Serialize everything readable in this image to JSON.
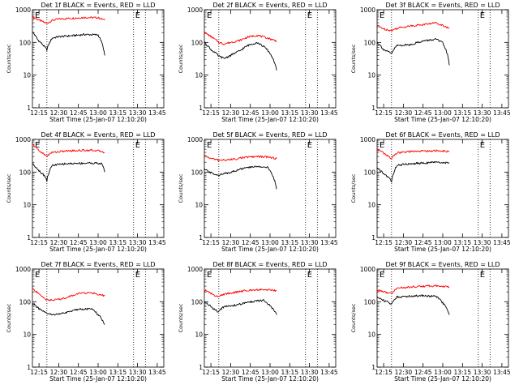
{
  "figure": {
    "ylabel": "Counts/sec",
    "xlabel": "Start Time (25-Jan-07 12:10:20)",
    "x_tick_labels": [
      "12:15",
      "12:30",
      "12:45",
      "13:00",
      "13:15",
      "13:30",
      "13:45"
    ],
    "y_tick_labels": [
      "1000",
      "100",
      "10",
      "1"
    ],
    "flag_label": "E",
    "colors": {
      "events": "#000000",
      "lld": "#ff0000",
      "frame": "#000000"
    }
  },
  "chart_data": [
    {
      "type": "line",
      "title": "Det 1f BLACK = Events, RED = LLD",
      "xlabel": "Start Time (25-Jan-07 12:10:20)",
      "ylabel": "Counts/sec",
      "ylim": [
        1,
        1000
      ],
      "y_scale": "log",
      "x_ticks": [
        "12:15",
        "12:30",
        "12:45",
        "13:00",
        "13:15",
        "13:30",
        "13:45"
      ],
      "x_range": [
        "12:10",
        "13:50"
      ],
      "vlines_dotted": [
        "12:21",
        "13:27",
        "13:36"
      ],
      "series": [
        {
          "key": "lld",
          "color": "#ff0000",
          "x": [
            "12:10",
            "12:14",
            "12:19",
            "12:21",
            "12:25",
            "12:30",
            "12:40",
            "12:50",
            "13:00",
            "13:05"
          ],
          "y": [
            600,
            500,
            410,
            380,
            470,
            520,
            550,
            580,
            570,
            480
          ]
        },
        {
          "key": "events",
          "color": "#000000",
          "x": [
            "12:10",
            "12:14",
            "12:19",
            "12:21",
            "12:25",
            "12:30",
            "12:40",
            "12:50",
            "13:00",
            "13:05"
          ],
          "y": [
            210,
            120,
            75,
            60,
            135,
            150,
            160,
            175,
            170,
            40
          ]
        }
      ]
    },
    {
      "type": "line",
      "title": "Det 2f BLACK = Events, RED = LLD",
      "xlabel": "Start Time (25-Jan-07 12:10:20)",
      "ylabel": "Counts/sec",
      "ylim": [
        1,
        1000
      ],
      "y_scale": "log",
      "x_ticks": [
        "12:15",
        "12:30",
        "12:45",
        "13:00",
        "13:15",
        "13:30",
        "13:45"
      ],
      "x_range": [
        "12:10",
        "13:50"
      ],
      "vlines_dotted": [
        "12:21",
        "13:27",
        "13:36"
      ],
      "series": [
        {
          "key": "lld",
          "color": "#ff0000",
          "x": [
            "12:10",
            "12:15",
            "12:21",
            "12:25",
            "12:30",
            "12:37",
            "12:43",
            "12:50",
            "12:57",
            "13:05"
          ],
          "y": [
            200,
            150,
            100,
            90,
            100,
            115,
            145,
            165,
            140,
            110
          ]
        },
        {
          "key": "events",
          "color": "#000000",
          "x": [
            "12:10",
            "12:15",
            "12:21",
            "12:25",
            "12:30",
            "12:37",
            "12:43",
            "12:50",
            "12:57",
            "13:05"
          ],
          "y": [
            100,
            60,
            38,
            32,
            40,
            55,
            80,
            100,
            65,
            14
          ]
        }
      ]
    },
    {
      "type": "line",
      "title": "Det 3f BLACK = Events, RED = LLD",
      "xlabel": "Start Time (25-Jan-07 12:10:20)",
      "ylabel": "Counts/sec",
      "ylim": [
        1,
        1000
      ],
      "y_scale": "log",
      "x_ticks": [
        "12:15",
        "12:30",
        "12:45",
        "13:00",
        "13:15",
        "13:30",
        "13:45"
      ],
      "x_range": [
        "12:10",
        "13:50"
      ],
      "vlines_dotted": [
        "12:21",
        "13:27",
        "13:36"
      ],
      "series": [
        {
          "key": "lld",
          "color": "#ff0000",
          "x": [
            "12:10",
            "12:15",
            "12:21",
            "12:25",
            "12:35",
            "12:45",
            "12:55",
            "13:00",
            "13:05"
          ],
          "y": [
            330,
            260,
            230,
            270,
            320,
            350,
            400,
            330,
            270
          ]
        },
        {
          "key": "events",
          "color": "#000000",
          "x": [
            "12:10",
            "12:15",
            "12:21",
            "12:25",
            "12:35",
            "12:45",
            "12:55",
            "13:00",
            "13:05"
          ],
          "y": [
            100,
            60,
            45,
            80,
            85,
            110,
            125,
            95,
            20
          ]
        }
      ]
    },
    {
      "type": "line",
      "title": "Det 4f BLACK = Events, RED = LLD",
      "xlabel": "Start Time (25-Jan-07 12:10:20)",
      "ylabel": "Counts/sec",
      "ylim": [
        1,
        1000
      ],
      "y_scale": "log",
      "x_ticks": [
        "12:15",
        "12:30",
        "12:45",
        "13:00",
        "13:15",
        "13:30",
        "13:45"
      ],
      "x_range": [
        "12:10",
        "13:50"
      ],
      "vlines_dotted": [
        "12:21",
        "13:27",
        "13:36"
      ],
      "series": [
        {
          "key": "lld",
          "color": "#ff0000",
          "x": [
            "12:10",
            "12:15",
            "12:20",
            "12:21",
            "12:25",
            "12:35",
            "12:45",
            "12:55",
            "13:03",
            "13:05"
          ],
          "y": [
            700,
            450,
            320,
            310,
            400,
            440,
            460,
            470,
            430,
            390
          ]
        },
        {
          "key": "events",
          "color": "#000000",
          "x": [
            "12:10",
            "12:15",
            "12:20",
            "12:21",
            "12:25",
            "12:35",
            "12:45",
            "12:55",
            "13:03",
            "13:05"
          ],
          "y": [
            180,
            110,
            70,
            55,
            160,
            180,
            185,
            190,
            180,
            100
          ]
        }
      ]
    },
    {
      "type": "line",
      "title": "Det 5f BLACK = Events, RED = LLD",
      "xlabel": "Start Time (25-Jan-07 12:10:20)",
      "ylabel": "Counts/sec",
      "ylim": [
        1,
        1000
      ],
      "y_scale": "log",
      "x_ticks": [
        "12:15",
        "12:30",
        "12:45",
        "13:00",
        "13:15",
        "13:30",
        "13:45"
      ],
      "x_range": [
        "12:10",
        "13:50"
      ],
      "vlines_dotted": [
        "12:21",
        "13:27",
        "13:36"
      ],
      "series": [
        {
          "key": "lld",
          "color": "#ff0000",
          "x": [
            "12:10",
            "12:15",
            "12:21",
            "12:30",
            "12:40",
            "12:50",
            "12:58",
            "13:05"
          ],
          "y": [
            320,
            260,
            230,
            240,
            280,
            300,
            290,
            260
          ]
        },
        {
          "key": "events",
          "color": "#000000",
          "x": [
            "12:10",
            "12:15",
            "12:21",
            "12:30",
            "12:40",
            "12:50",
            "12:58",
            "13:05"
          ],
          "y": [
            120,
            95,
            80,
            100,
            130,
            150,
            140,
            30
          ]
        }
      ]
    },
    {
      "type": "line",
      "title": "Det 6f BLACK = Events, RED = LLD",
      "xlabel": "Start Time (25-Jan-07 12:10:20)",
      "ylabel": "Counts/sec",
      "ylim": [
        1,
        1000
      ],
      "y_scale": "log",
      "x_ticks": [
        "12:15",
        "12:30",
        "12:45",
        "13:00",
        "13:15",
        "13:30",
        "13:45"
      ],
      "x_range": [
        "12:10",
        "13:50"
      ],
      "vlines_dotted": [
        "12:21",
        "13:27",
        "13:36"
      ],
      "series": [
        {
          "key": "lld",
          "color": "#ff0000",
          "x": [
            "12:10",
            "12:15",
            "12:20",
            "12:21",
            "12:25",
            "12:35",
            "12:45",
            "12:55",
            "13:05"
          ],
          "y": [
            500,
            380,
            270,
            260,
            390,
            420,
            440,
            450,
            420
          ]
        },
        {
          "key": "events",
          "color": "#000000",
          "x": [
            "12:10",
            "12:15",
            "12:20",
            "12:21",
            "12:25",
            "12:35",
            "12:45",
            "12:55",
            "13:05"
          ],
          "y": [
            130,
            90,
            60,
            50,
            160,
            180,
            190,
            200,
            190
          ]
        }
      ]
    },
    {
      "type": "line",
      "title": "Det 7f BLACK = Events, RED = LLD",
      "xlabel": "Start Time (25-Jan-07 12:10:20)",
      "ylabel": "Counts/sec",
      "ylim": [
        1,
        1000
      ],
      "y_scale": "log",
      "x_ticks": [
        "12:15",
        "12:30",
        "12:45",
        "13:00",
        "13:15",
        "13:30",
        "13:45"
      ],
      "x_range": [
        "12:10",
        "13:50"
      ],
      "vlines_dotted": [
        "12:21",
        "13:27",
        "13:36"
      ],
      "series": [
        {
          "key": "lld",
          "color": "#ff0000",
          "x": [
            "12:10",
            "12:15",
            "12:20",
            "12:25",
            "12:35",
            "12:45",
            "12:55",
            "13:05"
          ],
          "y": [
            250,
            170,
            120,
            110,
            130,
            180,
            190,
            150
          ]
        },
        {
          "key": "events",
          "color": "#000000",
          "x": [
            "12:10",
            "12:15",
            "12:20",
            "12:25",
            "12:35",
            "12:45",
            "12:55",
            "13:05"
          ],
          "y": [
            90,
            60,
            45,
            40,
            45,
            60,
            60,
            20
          ]
        }
      ]
    },
    {
      "type": "line",
      "title": "Det 8f BLACK = Events, RED = LLD",
      "xlabel": "Start Time (25-Jan-07 12:10:20)",
      "ylabel": "Counts/sec",
      "ylim": [
        1,
        1000
      ],
      "y_scale": "log",
      "x_ticks": [
        "12:15",
        "12:30",
        "12:45",
        "13:00",
        "13:15",
        "13:30",
        "13:45"
      ],
      "x_range": [
        "12:10",
        "13:50"
      ],
      "vlines_dotted": [
        "12:21",
        "13:27",
        "13:36"
      ],
      "series": [
        {
          "key": "lld",
          "color": "#ff0000",
          "x": [
            "12:10",
            "12:15",
            "12:20",
            "12:25",
            "12:35",
            "12:45",
            "12:55",
            "13:05"
          ],
          "y": [
            230,
            180,
            140,
            170,
            200,
            230,
            240,
            220
          ]
        },
        {
          "key": "events",
          "color": "#000000",
          "x": [
            "12:10",
            "12:15",
            "12:20",
            "12:25",
            "12:35",
            "12:45",
            "12:55",
            "13:05"
          ],
          "y": [
            100,
            70,
            50,
            70,
            80,
            100,
            110,
            40
          ]
        }
      ]
    },
    {
      "type": "line",
      "title": "Det 9f BLACK = Events, RED = LLD",
      "xlabel": "Start Time (25-Jan-07 12:10:20)",
      "ylabel": "Counts/sec",
      "ylim": [
        1,
        1000
      ],
      "y_scale": "log",
      "x_ticks": [
        "12:15",
        "12:30",
        "12:45",
        "13:00",
        "13:15",
        "13:30",
        "13:45"
      ],
      "x_range": [
        "12:10",
        "13:50"
      ],
      "vlines_dotted": [
        "12:21",
        "13:27",
        "13:36"
      ],
      "series": [
        {
          "key": "lld",
          "color": "#ff0000",
          "x": [
            "12:10",
            "12:15",
            "12:20",
            "12:21",
            "12:25",
            "12:35",
            "12:45",
            "12:55",
            "13:05"
          ],
          "y": [
            230,
            200,
            180,
            175,
            260,
            280,
            300,
            310,
            280
          ]
        },
        {
          "key": "events",
          "color": "#000000",
          "x": [
            "12:10",
            "12:15",
            "12:20",
            "12:21",
            "12:25",
            "12:35",
            "12:45",
            "12:55",
            "13:05"
          ],
          "y": [
            140,
            110,
            90,
            85,
            140,
            150,
            155,
            145,
            40
          ]
        }
      ]
    }
  ]
}
